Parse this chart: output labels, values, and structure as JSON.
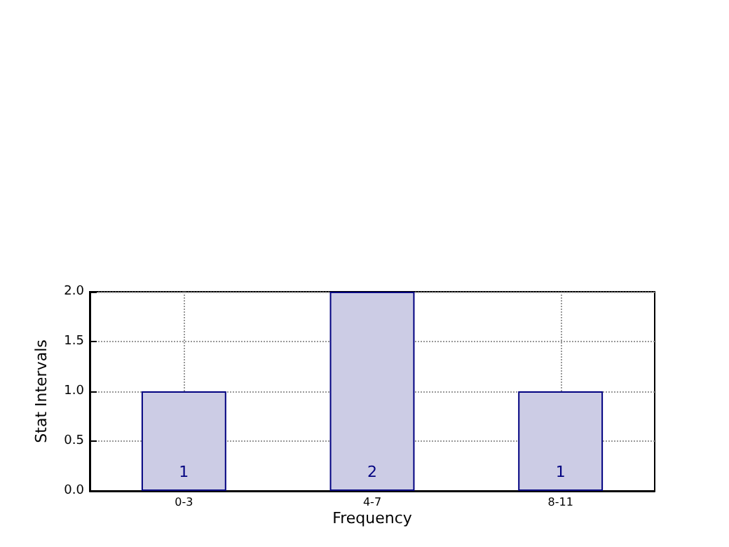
{
  "chart_data": {
    "type": "bar",
    "xlabel": "Frequency",
    "ylabel": "Stat Intervals",
    "categories": [
      "0-3",
      "4-7",
      "8-11"
    ],
    "values": [
      1,
      2,
      1
    ],
    "color": "#cccce5",
    "ylim": [
      0,
      2
    ],
    "yticks": [
      {
        "value": 0,
        "label": "0.0"
      },
      {
        "value": 0.5,
        "label": "0.5"
      },
      {
        "value": 1,
        "label": "1.0"
      },
      {
        "value": 1.5,
        "label": "1.5"
      },
      {
        "value": 2,
        "label": "2.0"
      }
    ],
    "data_labels": true,
    "grid": true
  }
}
